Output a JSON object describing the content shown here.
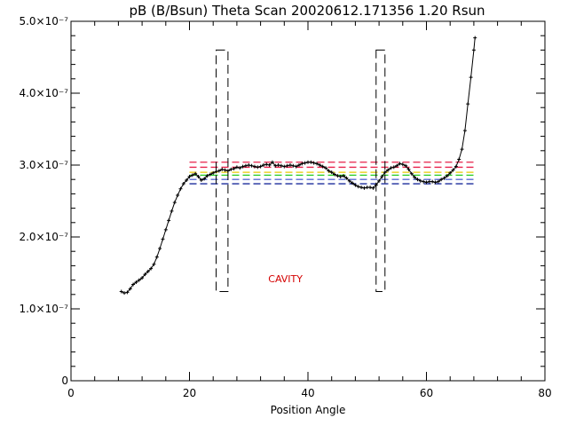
{
  "chart_data": {
    "type": "scatter",
    "title": "pB (B/Bsun) Theta Scan 20020612.171356 1.20 Rsun",
    "xlabel": "Position Angle",
    "ylabel": "",
    "xlim": [
      0,
      80
    ],
    "ylim": [
      0,
      5e-07
    ],
    "grid": false,
    "x_ticks": [
      {
        "value": 0,
        "label": "0"
      },
      {
        "value": 20,
        "label": "20"
      },
      {
        "value": 40,
        "label": "40"
      },
      {
        "value": 60,
        "label": "60"
      },
      {
        "value": 80,
        "label": "80"
      }
    ],
    "y_ticks": [
      {
        "value": 0,
        "label": "0"
      },
      {
        "value": 1e-07,
        "label": "1.0×10⁻⁷"
      },
      {
        "value": 2e-07,
        "label": "2.0×10⁻⁷"
      },
      {
        "value": 3e-07,
        "label": "3.0×10⁻⁷"
      },
      {
        "value": 4e-07,
        "label": "4.0×10⁻⁷"
      },
      {
        "value": 5e-07,
        "label": "5.0×10⁻⁷"
      }
    ],
    "series": [
      {
        "style": "line-with-plus-markers",
        "color": "#000000",
        "points": [
          [
            8.5,
            1.24e-07
          ],
          [
            9.0,
            1.22e-07
          ],
          [
            9.5,
            1.23e-07
          ],
          [
            10.0,
            1.28e-07
          ],
          [
            10.5,
            1.34e-07
          ],
          [
            11.0,
            1.37e-07
          ],
          [
            11.5,
            1.4e-07
          ],
          [
            12.0,
            1.43e-07
          ],
          [
            12.5,
            1.48e-07
          ],
          [
            13.0,
            1.52e-07
          ],
          [
            13.5,
            1.56e-07
          ],
          [
            14.0,
            1.62e-07
          ],
          [
            14.5,
            1.72e-07
          ],
          [
            15.0,
            1.84e-07
          ],
          [
            15.5,
            1.97e-07
          ],
          [
            16.0,
            2.1e-07
          ],
          [
            16.5,
            2.23e-07
          ],
          [
            17.0,
            2.36e-07
          ],
          [
            17.5,
            2.48e-07
          ],
          [
            18.0,
            2.58e-07
          ],
          [
            18.5,
            2.67e-07
          ],
          [
            19.0,
            2.74e-07
          ],
          [
            19.5,
            2.79e-07
          ],
          [
            20.0,
            2.84e-07
          ],
          [
            20.5,
            2.86e-07
          ],
          [
            21.0,
            2.88e-07
          ],
          [
            21.5,
            2.84e-07
          ],
          [
            22.0,
            2.79e-07
          ],
          [
            22.5,
            2.81e-07
          ],
          [
            23.0,
            2.85e-07
          ],
          [
            23.5,
            2.87e-07
          ],
          [
            24.0,
            2.89e-07
          ],
          [
            24.5,
            2.91e-07
          ],
          [
            25.0,
            2.92e-07
          ],
          [
            25.5,
            2.94e-07
          ],
          [
            26.0,
            2.93e-07
          ],
          [
            26.5,
            2.92e-07
          ],
          [
            27.0,
            2.94e-07
          ],
          [
            27.5,
            2.95e-07
          ],
          [
            28.0,
            2.97e-07
          ],
          [
            28.5,
            2.96e-07
          ],
          [
            29.0,
            2.98e-07
          ],
          [
            29.5,
            2.99e-07
          ],
          [
            30.0,
            3e-07
          ],
          [
            30.5,
            2.99e-07
          ],
          [
            31.0,
            2.98e-07
          ],
          [
            31.5,
            2.97e-07
          ],
          [
            32.0,
            2.98e-07
          ],
          [
            32.5,
            3e-07
          ],
          [
            33.0,
            3.01e-07
          ],
          [
            33.5,
            3e-07
          ],
          [
            34.0,
            3.04e-07
          ],
          [
            34.5,
            2.99e-07
          ],
          [
            35.0,
            3e-07
          ],
          [
            35.5,
            2.99e-07
          ],
          [
            36.0,
            2.98e-07
          ],
          [
            36.5,
            2.99e-07
          ],
          [
            37.0,
            3e-07
          ],
          [
            37.5,
            2.99e-07
          ],
          [
            38.0,
            2.98e-07
          ],
          [
            38.5,
            3e-07
          ],
          [
            39.0,
            3.02e-07
          ],
          [
            39.5,
            3.03e-07
          ],
          [
            40.0,
            3.04e-07
          ],
          [
            40.5,
            3.04e-07
          ],
          [
            41.0,
            3.03e-07
          ],
          [
            41.5,
            3.02e-07
          ],
          [
            42.0,
            3e-07
          ],
          [
            42.5,
            2.98e-07
          ],
          [
            43.0,
            2.96e-07
          ],
          [
            43.5,
            2.92e-07
          ],
          [
            44.0,
            2.9e-07
          ],
          [
            44.5,
            2.87e-07
          ],
          [
            45.0,
            2.85e-07
          ],
          [
            45.5,
            2.84e-07
          ],
          [
            46.0,
            2.85e-07
          ],
          [
            46.5,
            2.82e-07
          ],
          [
            47.0,
            2.78e-07
          ],
          [
            47.5,
            2.75e-07
          ],
          [
            48.0,
            2.72e-07
          ],
          [
            48.5,
            2.7e-07
          ],
          [
            49.0,
            2.69e-07
          ],
          [
            49.5,
            2.68e-07
          ],
          [
            50.0,
            2.69e-07
          ],
          [
            50.5,
            2.69e-07
          ],
          [
            51.0,
            2.68e-07
          ],
          [
            51.5,
            2.72e-07
          ],
          [
            52.0,
            2.78e-07
          ],
          [
            52.5,
            2.84e-07
          ],
          [
            53.0,
            2.9e-07
          ],
          [
            53.5,
            2.93e-07
          ],
          [
            54.0,
            2.96e-07
          ],
          [
            54.5,
            2.97e-07
          ],
          [
            55.0,
            2.99e-07
          ],
          [
            55.5,
            3.02e-07
          ],
          [
            56.0,
            3.01e-07
          ],
          [
            56.5,
            2.99e-07
          ],
          [
            57.0,
            2.94e-07
          ],
          [
            57.5,
            2.88e-07
          ],
          [
            58.0,
            2.83e-07
          ],
          [
            58.5,
            2.8e-07
          ],
          [
            59.0,
            2.78e-07
          ],
          [
            59.5,
            2.77e-07
          ],
          [
            60.0,
            2.76e-07
          ],
          [
            60.5,
            2.77e-07
          ],
          [
            61.0,
            2.77e-07
          ],
          [
            61.5,
            2.76e-07
          ],
          [
            62.0,
            2.77e-07
          ],
          [
            62.5,
            2.8e-07
          ],
          [
            63.0,
            2.82e-07
          ],
          [
            63.5,
            2.85e-07
          ],
          [
            64.0,
            2.89e-07
          ],
          [
            64.5,
            2.93e-07
          ],
          [
            65.0,
            2.98e-07
          ],
          [
            65.5,
            3.08e-07
          ],
          [
            66.0,
            3.22e-07
          ],
          [
            66.5,
            3.48e-07
          ],
          [
            67.0,
            3.85e-07
          ],
          [
            67.5,
            4.22e-07
          ],
          [
            68.0,
            4.6e-07
          ],
          [
            68.2,
            4.77e-07
          ]
        ]
      }
    ],
    "reference_lines": [
      {
        "y": 3.04e-07,
        "color": "#e8204a",
        "x_range": [
          20,
          68
        ],
        "style": "dashed"
      },
      {
        "y": 2.97e-07,
        "color": "#e8204a",
        "x_range": [
          20,
          68
        ],
        "style": "dashed"
      },
      {
        "y": 2.9e-07,
        "color": "#e8c800",
        "x_range": [
          20,
          68
        ],
        "style": "dashed"
      },
      {
        "y": 2.86e-07,
        "color": "#22cc22",
        "x_range": [
          20,
          68
        ],
        "style": "dashed"
      },
      {
        "y": 2.8e-07,
        "color": "#5a6bd2",
        "x_range": [
          20,
          68
        ],
        "style": "dashed"
      },
      {
        "y": 2.74e-07,
        "color": "#1a2a9c",
        "x_range": [
          20,
          68
        ],
        "style": "dashed"
      }
    ],
    "boundary_boxes": [
      {
        "x_range": [
          24.5,
          26.5
        ],
        "y_range": [
          1.24e-07,
          4.6e-07
        ],
        "style": "dashed",
        "color": "#000000"
      },
      {
        "x_range": [
          51.5,
          53.0
        ],
        "y_range": [
          1.24e-07,
          4.6e-07
        ],
        "style": "dashed",
        "color": "#000000"
      }
    ],
    "annotations": [
      {
        "text": "CAVITY",
        "x": 36.2,
        "y": 1.37e-07,
        "color": "#d40000"
      }
    ]
  }
}
